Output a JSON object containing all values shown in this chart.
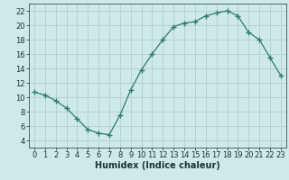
{
  "x": [
    0,
    1,
    2,
    3,
    4,
    5,
    6,
    7,
    8,
    9,
    10,
    11,
    12,
    13,
    14,
    15,
    16,
    17,
    18,
    19,
    20,
    21,
    22,
    23
  ],
  "y": [
    10.7,
    10.3,
    9.5,
    8.5,
    7.0,
    5.5,
    5.0,
    4.8,
    7.5,
    11.0,
    13.8,
    16.0,
    18.0,
    19.8,
    20.3,
    20.5,
    21.3,
    21.7,
    22.0,
    21.3,
    19.0,
    18.0,
    15.5,
    13.0
  ],
  "line_color": "#2d7d6e",
  "marker": "+",
  "marker_size": 4,
  "bg_color": "#cfe8e8",
  "grid_color": "#b0d0d0",
  "xlabel": "Humidex (Indice chaleur)",
  "ylim": [
    3,
    23
  ],
  "xlim": [
    -0.5,
    23.5
  ],
  "yticks": [
    4,
    6,
    8,
    10,
    12,
    14,
    16,
    18,
    20,
    22
  ],
  "xticks": [
    0,
    1,
    2,
    3,
    4,
    5,
    6,
    7,
    8,
    9,
    10,
    11,
    12,
    13,
    14,
    15,
    16,
    17,
    18,
    19,
    20,
    21,
    22,
    23
  ],
  "tick_color": "#1a3333",
  "label_fontsize": 7,
  "tick_fontsize": 6,
  "line_width": 0.9,
  "marker_edge_width": 1.0
}
